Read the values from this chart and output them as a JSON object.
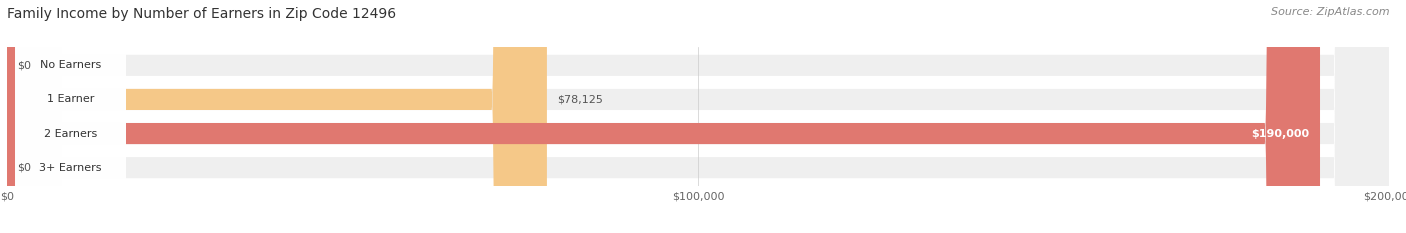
{
  "title": "Family Income by Number of Earners in Zip Code 12496",
  "source": "Source: ZipAtlas.com",
  "categories": [
    "No Earners",
    "1 Earner",
    "2 Earners",
    "3+ Earners"
  ],
  "values": [
    0,
    78125,
    190000,
    0
  ],
  "max_value": 200000,
  "bar_colors": [
    "#f4a0b0",
    "#f5c888",
    "#e07870",
    "#a8bce8"
  ],
  "bar_bg_color": "#efefef",
  "value_labels": [
    "$0",
    "$78,125",
    "$190,000",
    "$0"
  ],
  "value_label_inside": [
    false,
    false,
    true,
    false
  ],
  "xtick_labels": [
    "$0",
    "$100,000",
    "$200,000"
  ],
  "xtick_values": [
    0,
    100000,
    200000
  ],
  "title_fontsize": 10,
  "source_fontsize": 8,
  "background_color": "#ffffff"
}
